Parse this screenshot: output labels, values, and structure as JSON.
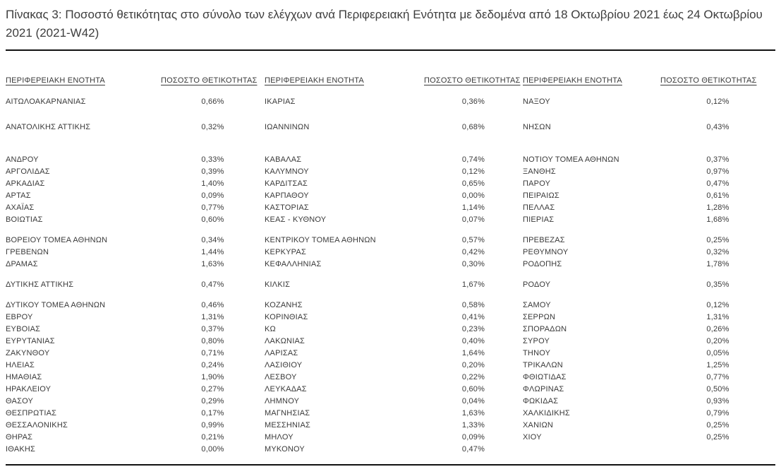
{
  "page": {
    "title": "Πίνακας 3: Ποσοστό θετικότητας στο σύνολο των ελέγχων ανά Περιφερειακή Ενότητα με δεδομένα από 18 Οκτωβρίου 2021 έως 24 Οκτωβρίου 2021 (2021-W42)"
  },
  "colors": {
    "text": "#3a3a3a",
    "rule": "#111111",
    "background": "#ffffff"
  },
  "table": {
    "headers": {
      "region": "ΠΕΡΙΦΕΡΕΙΑΚΗ ΕΝΟΤΗΤΑ",
      "positivity": "ΠΟΣΟΣΤΟ ΘΕΤΙΚΟΤΗΤΑΣ"
    },
    "groups": [
      {
        "tall": true,
        "rows": [
          [
            "ΑΙΤΩΛΟΑΚΑΡΝΑΝΙΑΣ",
            "0,66%",
            "ΙΚΑΡΙΑΣ",
            "0,36%",
            "ΝΑΞΟΥ",
            "0,12%"
          ],
          [
            "ΑΝΑΤΟΛΙΚΗΣ ΑΤΤΙΚΗΣ",
            "0,32%",
            "ΙΩΑΝΝΙΝΩΝ",
            "0,68%",
            "ΝΗΣΩΝ",
            "0,43%"
          ]
        ]
      },
      {
        "tall": false,
        "rows": [
          [
            "ΑΝΔΡΟΥ",
            "0,33%",
            "ΚΑΒΑΛΑΣ",
            "0,74%",
            "ΝΟΤΙΟΥ ΤΟΜΕΑ ΑΘΗΝΩΝ",
            "0,37%"
          ],
          [
            "ΑΡΓΟΛΙΔΑΣ",
            "0,39%",
            "ΚΑΛΥΜΝΟΥ",
            "0,12%",
            "ΞΑΝΘΗΣ",
            "0,97%"
          ],
          [
            "ΑΡΚΑΔΙΑΣ",
            "1,40%",
            "ΚΑΡΔΙΤΣΑΣ",
            "0,65%",
            "ΠΑΡΟΥ",
            "0,47%"
          ],
          [
            "ΑΡΤΑΣ",
            "0,09%",
            "ΚΑΡΠΑΘΟΥ",
            "0,00%",
            "ΠΕΙΡΑΙΩΣ",
            "0,61%"
          ],
          [
            "ΑΧΑΪΑΣ",
            "0,77%",
            "ΚΑΣΤΟΡΙΑΣ",
            "1,14%",
            "ΠΕΛΛΑΣ",
            "1,28%"
          ],
          [
            "ΒΟΙΩΤΙΑΣ",
            "0,60%",
            "ΚΕΑΣ - ΚΥΘΝΟΥ",
            "0,07%",
            "ΠΙΕΡΙΑΣ",
            "1,68%"
          ]
        ]
      },
      {
        "tall": false,
        "rows": [
          [
            "ΒΟΡΕΙΟΥ ΤΟΜΕΑ ΑΘΗΝΩΝ",
            "0,34%",
            "ΚΕΝΤΡΙΚΟΥ ΤΟΜΕΑ ΑΘΗΝΩΝ",
            "0,57%",
            "ΠΡΕΒΕΖΑΣ",
            "0,25%"
          ],
          [
            "ΓΡΕΒΕΝΩΝ",
            "1,44%",
            "ΚΕΡΚΥΡΑΣ",
            "0,42%",
            "ΡΕΘΥΜΝΟΥ",
            "0,32%"
          ],
          [
            "ΔΡΑΜΑΣ",
            "1,63%",
            "ΚΕΦΑΛΛΗΝΙΑΣ",
            "0,30%",
            "ΡΟΔΟΠΗΣ",
            "1,78%"
          ]
        ]
      },
      {
        "tall": false,
        "rows": [
          [
            "ΔΥΤΙΚΗΣ ΑΤΤΙΚΗΣ",
            "0,47%",
            "ΚΙΛΚΙΣ",
            "1,67%",
            "ΡΟΔΟΥ",
            "0,35%"
          ]
        ]
      },
      {
        "tall": false,
        "rows": [
          [
            "ΔΥΤΙΚΟΥ ΤΟΜΕΑ ΑΘΗΝΩΝ",
            "0,46%",
            "ΚΟΖΑΝΗΣ",
            "0,58%",
            "ΣΑΜΟΥ",
            "0,12%"
          ],
          [
            "ΕΒΡΟΥ",
            "1,31%",
            "ΚΟΡΙΝΘΙΑΣ",
            "0,41%",
            "ΣΕΡΡΩΝ",
            "1,31%"
          ],
          [
            "ΕΥΒΟΙΑΣ",
            "0,37%",
            "ΚΩ",
            "0,23%",
            "ΣΠΟΡΑΔΩΝ",
            "0,26%"
          ],
          [
            "ΕΥΡΥΤΑΝΙΑΣ",
            "0,80%",
            "ΛΑΚΩΝΙΑΣ",
            "0,40%",
            "ΣΥΡΟΥ",
            "0,20%"
          ],
          [
            "ΖΑΚΥΝΘΟΥ",
            "0,71%",
            "ΛΑΡΙΣΑΣ",
            "1,64%",
            "ΤΗΝΟΥ",
            "0,05%"
          ],
          [
            "ΗΛΕΙΑΣ",
            "0,24%",
            "ΛΑΣΙΘΙΟΥ",
            "0,20%",
            "ΤΡΙΚΑΛΩΝ",
            "1,25%"
          ],
          [
            "ΗΜΑΘΙΑΣ",
            "1,90%",
            "ΛΕΣΒΟΥ",
            "0,22%",
            "ΦΘΙΩΤΙΔΑΣ",
            "0,77%"
          ],
          [
            "ΗΡΑΚΛΕΙΟΥ",
            "0,27%",
            "ΛΕΥΚΑΔΑΣ",
            "0,60%",
            "ΦΛΩΡΙΝΑΣ",
            "0,50%"
          ],
          [
            "ΘΑΣΟΥ",
            "0,29%",
            "ΛΗΜΝΟΥ",
            "0,04%",
            "ΦΩΚΙΔΑΣ",
            "0,93%"
          ],
          [
            "ΘΕΣΠΡΩΤΙΑΣ",
            "0,17%",
            "ΜΑΓΝΗΣΙΑΣ",
            "1,63%",
            "ΧΑΛΚΙΔΙΚΗΣ",
            "0,79%"
          ],
          [
            "ΘΕΣΣΑΛΟΝΙΚΗΣ",
            "0,99%",
            "ΜΕΣΣΗΝΙΑΣ",
            "1,33%",
            "ΧΑΝΙΩΝ",
            "0,25%"
          ],
          [
            "ΘΗΡΑΣ",
            "0,21%",
            "ΜΗΛΟΥ",
            "0,09%",
            "ΧΙΟΥ",
            "0,25%"
          ],
          [
            "ΙΘΑΚΗΣ",
            "0,00%",
            "ΜΥΚΟΝΟΥ",
            "0,47%",
            "",
            ""
          ]
        ]
      }
    ]
  }
}
